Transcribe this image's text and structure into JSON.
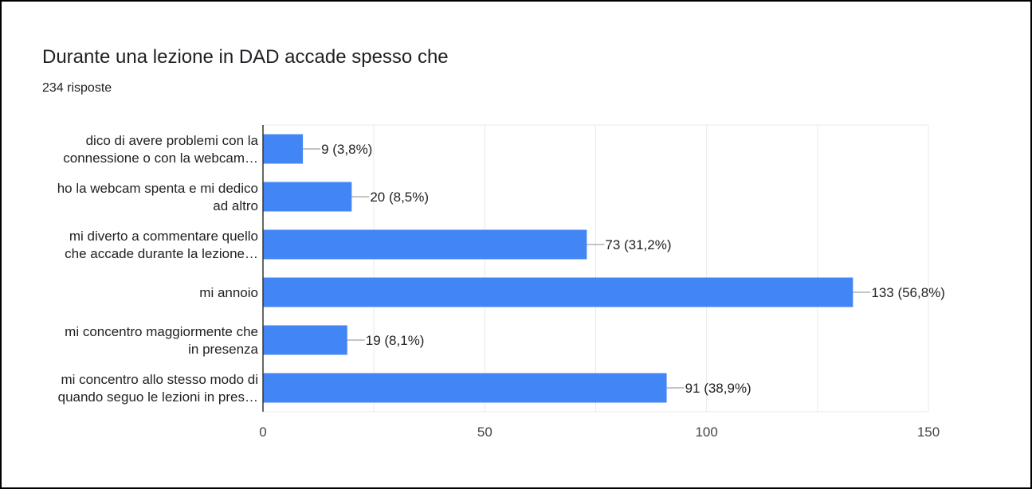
{
  "header": {
    "title": "Durante una lezione in DAD accade spesso che",
    "subtitle": "234 risposte"
  },
  "colors": {
    "bar": "#4285f4",
    "grid": "#e8e8e8",
    "axis": "#333333"
  },
  "chart_data": {
    "type": "bar",
    "orientation": "horizontal",
    "categories": [
      [
        "dico di avere problemi con la",
        "connessione o con la webcam…"
      ],
      [
        "ho la webcam spenta e mi dedico",
        "ad altro"
      ],
      [
        "mi diverto a commentare quello",
        "che accade durante la lezione…"
      ],
      [
        "mi annoio"
      ],
      [
        "mi concentro maggiormente che",
        "in presenza"
      ],
      [
        "mi concentro allo stesso modo di",
        "quando seguo le lezioni in pres…"
      ]
    ],
    "values": [
      9,
      20,
      73,
      133,
      19,
      91
    ],
    "labels": [
      "9 (3,8%)",
      "20 (8,5%)",
      "73 (31,2%)",
      "133 (56,8%)",
      "19 (8,1%)",
      "91 (38,9%)"
    ],
    "xlim": [
      0,
      150
    ],
    "xticks": [
      0,
      50,
      100,
      150
    ],
    "grid": true,
    "legend": "none"
  }
}
